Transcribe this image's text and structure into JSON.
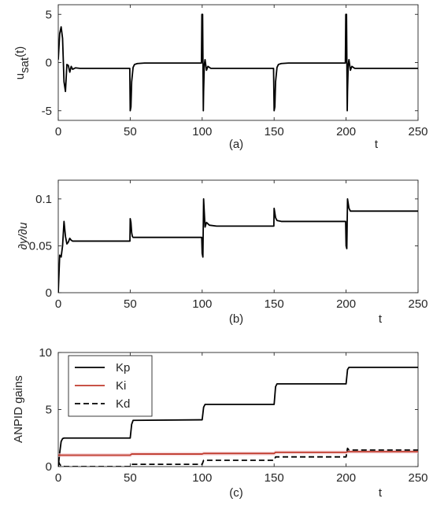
{
  "chart_data": [
    {
      "type": "line",
      "caption": "(a)",
      "xlabel": "t",
      "ylabel_main": "u",
      "ylabel_sub": "sat",
      "ylabel_tail": "(t)",
      "xlim": [
        0,
        250
      ],
      "ylim": [
        -6,
        6
      ],
      "xticks": [
        0,
        50,
        100,
        150,
        200,
        250
      ],
      "yticks": [
        -5,
        0,
        5
      ],
      "series": [
        {
          "color": "#000000",
          "dash": false,
          "x": [
            0,
            1,
            2,
            3,
            4,
            5,
            6,
            7,
            8,
            9,
            10,
            12,
            15,
            20,
            30,
            40,
            49.7,
            50,
            50.5,
            51,
            52,
            53,
            55,
            60,
            70,
            80,
            90,
            99.5,
            99.8,
            100,
            100.3,
            100.6,
            100.8,
            101,
            101.5,
            102,
            103,
            104,
            106,
            110,
            120,
            130,
            140,
            149.6,
            150,
            150.5,
            151,
            152,
            153,
            155,
            160,
            170,
            180,
            190,
            199.5,
            199.8,
            200,
            200.3,
            200.6,
            200.8,
            201,
            201.5,
            202,
            203,
            204,
            206,
            210,
            220,
            230,
            240,
            250
          ],
          "y": [
            0.3,
            3.0,
            3.7,
            2.5,
            -2.0,
            -3.0,
            -0.2,
            -0.3,
            -1.0,
            -0.4,
            -0.7,
            -0.55,
            -0.6,
            -0.6,
            -0.6,
            -0.6,
            -0.6,
            -5.0,
            -4.6,
            -2.0,
            -0.5,
            -0.2,
            -0.1,
            -0.05,
            -0.05,
            -0.05,
            -0.05,
            -0.05,
            5.0,
            5.0,
            5.0,
            -1.0,
            -5.0,
            -3.0,
            -0.2,
            0.3,
            -0.8,
            -0.4,
            -0.6,
            -0.6,
            -0.6,
            -0.6,
            -0.6,
            -0.6,
            -5.0,
            -4.6,
            -2.0,
            -0.5,
            -0.2,
            -0.1,
            -0.05,
            -0.05,
            -0.05,
            -0.05,
            -0.05,
            5.0,
            5.0,
            5.0,
            -1.0,
            -5.0,
            -3.0,
            -0.2,
            0.3,
            -0.8,
            -0.4,
            -0.6,
            -0.6,
            -0.6,
            -0.6,
            -0.6,
            -0.6
          ]
        }
      ]
    },
    {
      "type": "line",
      "caption": "(b)",
      "xlabel": "t",
      "ylabel": "∂y/∂u",
      "xlim": [
        0,
        250
      ],
      "ylim": [
        0,
        0.12
      ],
      "xticks": [
        0,
        50,
        100,
        150,
        200,
        250
      ],
      "yticks": [
        0,
        0.05,
        0.1
      ],
      "series": [
        {
          "color": "#000000",
          "dash": false,
          "x": [
            0,
            0.5,
            1,
            2,
            3,
            4,
            5,
            6,
            7,
            8,
            9,
            10,
            12,
            15,
            20,
            30,
            40,
            49.8,
            50,
            50.5,
            51,
            51.5,
            52,
            53,
            55,
            60,
            70,
            80,
            90,
            99.7,
            100,
            100.5,
            101,
            101.5,
            102,
            103,
            105,
            110,
            120,
            130,
            140,
            149.8,
            150,
            150.5,
            151,
            152,
            155,
            160,
            170,
            180,
            190,
            199.7,
            200,
            200.5,
            201,
            201.5,
            202,
            203,
            205,
            210,
            220,
            230,
            240,
            250
          ],
          "y": [
            0.0,
            0.02,
            0.04,
            0.038,
            0.05,
            0.076,
            0.06,
            0.052,
            0.054,
            0.058,
            0.056,
            0.055,
            0.055,
            0.055,
            0.055,
            0.055,
            0.055,
            0.055,
            0.079,
            0.075,
            0.064,
            0.06,
            0.059,
            0.059,
            0.059,
            0.059,
            0.059,
            0.059,
            0.059,
            0.059,
            0.042,
            0.038,
            0.1,
            0.085,
            0.07,
            0.075,
            0.072,
            0.071,
            0.071,
            0.071,
            0.071,
            0.071,
            0.09,
            0.085,
            0.08,
            0.077,
            0.076,
            0.076,
            0.076,
            0.076,
            0.076,
            0.076,
            0.05,
            0.047,
            0.1,
            0.095,
            0.09,
            0.087,
            0.087,
            0.087,
            0.087,
            0.087,
            0.087,
            0.087
          ]
        }
      ]
    },
    {
      "type": "line",
      "caption": "(c)",
      "xlabel": "t",
      "ylabel": "ANPID gains",
      "xlim": [
        0,
        250
      ],
      "ylim": [
        0,
        10
      ],
      "xticks": [
        0,
        50,
        100,
        150,
        200,
        250
      ],
      "yticks": [
        0,
        5,
        10
      ],
      "legend": "top-left",
      "series": [
        {
          "name": "Kp",
          "color": "#000000",
          "dash": false,
          "x": [
            0,
            1,
            2,
            3,
            4,
            5,
            50,
            51,
            52,
            100,
            101,
            102,
            150,
            151,
            152,
            200,
            201,
            202,
            250
          ],
          "y": [
            0,
            1.2,
            2.2,
            2.45,
            2.5,
            2.5,
            2.5,
            3.7,
            4.05,
            4.1,
            5.2,
            5.45,
            5.45,
            7.0,
            7.25,
            7.25,
            8.5,
            8.7,
            8.7
          ]
        },
        {
          "name": "Ki",
          "color": "#c0392b",
          "dash": false,
          "x": [
            0,
            50,
            51,
            100,
            101,
            150,
            151,
            200,
            201,
            250
          ],
          "y": [
            1.0,
            1.0,
            1.1,
            1.1,
            1.15,
            1.15,
            1.25,
            1.25,
            1.3,
            1.3
          ]
        },
        {
          "name": "Kd",
          "color": "#000000",
          "dash": true,
          "x": [
            0,
            1,
            2,
            5,
            50,
            51,
            100,
            101,
            150,
            151,
            200,
            201,
            202,
            250
          ],
          "y": [
            0.5,
            0.2,
            0.05,
            0.0,
            0.0,
            0.2,
            0.2,
            0.55,
            0.55,
            0.85,
            0.85,
            1.6,
            1.45,
            1.45
          ]
        }
      ]
    }
  ]
}
